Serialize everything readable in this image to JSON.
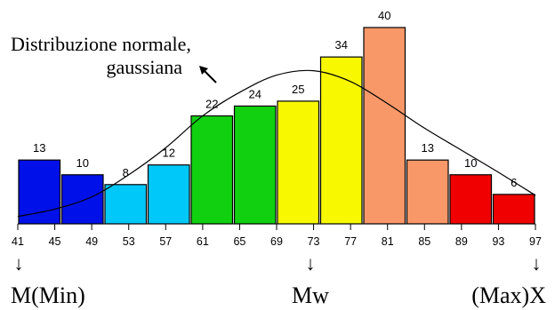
{
  "chart_data": {
    "type": "bar",
    "title": "",
    "xlabel": "",
    "ylabel": "",
    "bins": [
      {
        "from": 41,
        "to": 45,
        "value": 13,
        "color": "#0010e8"
      },
      {
        "from": 45,
        "to": 49,
        "value": 10,
        "color": "#0010e8"
      },
      {
        "from": 49,
        "to": 53,
        "value": 8,
        "color": "#00c8f8"
      },
      {
        "from": 53,
        "to": 57,
        "value": 12,
        "color": "#00c8f8"
      },
      {
        "from": 57,
        "to": 61,
        "value": 22,
        "color": "#10d010"
      },
      {
        "from": 61,
        "to": 65,
        "value": 24,
        "color": "#10d010"
      },
      {
        "from": 65,
        "to": 69,
        "value": 25,
        "color": "#f8f800"
      },
      {
        "from": 69,
        "to": 73,
        "value": 34,
        "color": "#f8f800"
      },
      {
        "from": 73,
        "to": 77,
        "value": 40,
        "color": "#f89868"
      },
      {
        "from": 77,
        "to": 81,
        "value": 13,
        "color": "#f89868"
      },
      {
        "from": 81,
        "to": 85,
        "value": 10,
        "color": "#f00000"
      },
      {
        "from": 85,
        "to": 89,
        "value": 6,
        "color": "#f00000"
      }
    ],
    "x_ticks": [
      41,
      45,
      49,
      53,
      57,
      61,
      65,
      69,
      73,
      77,
      81,
      85,
      89,
      93,
      97
    ],
    "x_range": [
      41,
      97
    ],
    "y_range": [
      0,
      40
    ],
    "curve": {
      "type": "normal",
      "label": "Distribuzione normale,\ngaussiana",
      "points": [
        [
          41,
          1.5
        ],
        [
          45,
          3.0
        ],
        [
          49,
          5.5
        ],
        [
          53,
          10.0
        ],
        [
          57,
          15.5
        ],
        [
          61,
          22.0
        ],
        [
          65,
          26.8
        ],
        [
          69,
          30.3
        ],
        [
          73,
          31.2
        ],
        [
          77,
          29.0
        ],
        [
          81,
          24.5
        ],
        [
          85,
          19.5
        ],
        [
          89,
          15.0
        ],
        [
          93,
          10.5
        ],
        [
          97,
          5.8
        ]
      ]
    },
    "markers": [
      {
        "label": "M(Min)",
        "arrow": "↓",
        "align": "left"
      },
      {
        "label": "Mw",
        "arrow": "↓",
        "align": "center"
      },
      {
        "label": "(Max)X",
        "arrow": "↓",
        "align": "right"
      }
    ],
    "legend": "none",
    "grid": false
  }
}
